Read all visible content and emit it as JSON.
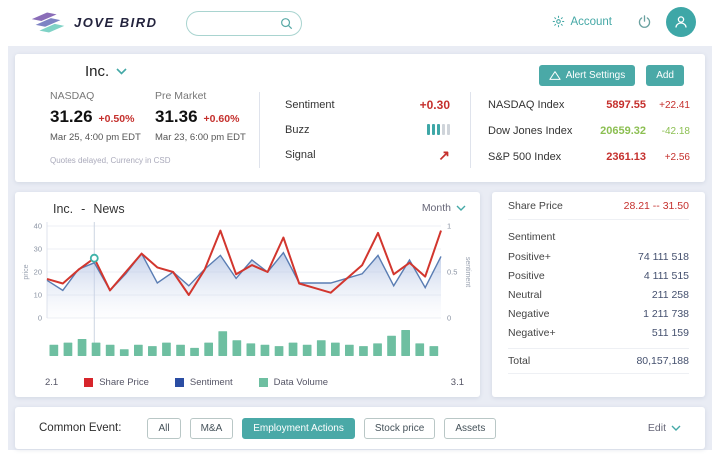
{
  "header": {
    "logo_text": "JOVE BIRD",
    "search_placeholder": "",
    "account_label": "Account"
  },
  "overview": {
    "company": "Inc.",
    "quote_exchange": {
      "label": "NASDAQ",
      "price": "31.26",
      "change": "+0.50%",
      "time": "Mar 25, 4:00 pm  EDT"
    },
    "quote_premarket": {
      "label": "Pre Market",
      "price": "31.36",
      "change": "+0.60%",
      "time": "Mar 23, 6:00 pm  EDT"
    },
    "disclaimer": "Quotes delayed, Currency in CSD",
    "metrics": {
      "sentiment_label": "Sentiment",
      "sentiment_value": "+0.30",
      "buzz_label": "Buzz",
      "buzz": {
        "filled": 3,
        "total": 5
      },
      "signal_label": "Signal",
      "signal_arrow": "↗"
    },
    "buttons": {
      "alert": "Alert Settings",
      "add": "Add"
    },
    "indices": [
      {
        "name": "NASDAQ Index",
        "value": "5897.55",
        "change": "+22.41",
        "direction": "up"
      },
      {
        "name": "Dow Jones Index",
        "value": "20659.32",
        "change": "-42.18",
        "direction": "down"
      },
      {
        "name": "S&P 500 Index",
        "value": "2361.13",
        "change": "+2.56",
        "direction": "up"
      }
    ]
  },
  "news": {
    "company": "Inc.",
    "separator": "-",
    "title": "News",
    "period": "Month"
  },
  "chart_data": {
    "type": "line+bar",
    "title": "Inc. - News",
    "x_start_label": "2.1",
    "x_end_label": "3.1",
    "left_axis": {
      "label": "price",
      "range": [
        0,
        40
      ],
      "ticks": [
        0,
        10,
        20,
        30,
        40
      ]
    },
    "right_axis": {
      "label": "sentiment",
      "range": [
        0,
        1
      ],
      "ticks": [
        0,
        0.5,
        1
      ]
    },
    "hover_index": 3,
    "legend": [
      "Share Price",
      "Sentiment",
      "Data Volume"
    ],
    "legend_colors": [
      "#d7252b",
      "#2b4da3",
      "#6ebfa1"
    ],
    "series": [
      {
        "name": "Share Price",
        "axis": "left",
        "color": "#d2362e",
        "values": [
          17,
          15,
          21,
          26,
          12,
          20,
          28,
          22,
          20,
          10,
          21,
          38,
          19,
          23,
          20,
          35,
          15,
          13,
          11,
          17,
          23,
          37,
          19,
          24,
          18,
          38
        ]
      },
      {
        "name": "Sentiment",
        "axis": "right",
        "color": "#5a7db3",
        "values": [
          0.41,
          0.3,
          0.53,
          0.6,
          0.3,
          0.48,
          0.7,
          0.38,
          0.5,
          0.35,
          0.53,
          0.68,
          0.43,
          0.63,
          0.5,
          0.71,
          0.38,
          0.38,
          0.38,
          0.43,
          0.48,
          0.68,
          0.35,
          0.63,
          0.33,
          0.67
        ]
      },
      {
        "name": "Data Volume",
        "axis": "volume",
        "color": "#6ebfa1",
        "values": [
          25,
          30,
          38,
          30,
          25,
          15,
          25,
          22,
          30,
          25,
          18,
          30,
          55,
          35,
          28,
          25,
          22,
          30,
          25,
          35,
          30,
          25,
          22,
          28,
          45,
          58,
          28,
          22
        ]
      }
    ]
  },
  "stats": {
    "share_price_label": "Share Price",
    "share_price_range": "28.21 -- 31.50",
    "sentiment_label": "Sentiment",
    "rows": [
      {
        "label": "Positive+",
        "value": "74 111 518"
      },
      {
        "label": "Positive",
        "value": "4 111 515"
      },
      {
        "label": "Neutral",
        "value": "211 258"
      },
      {
        "label": "Negative",
        "value": "1 211 738"
      },
      {
        "label": "Negative+",
        "value": "511 159"
      }
    ],
    "total_label": "Total",
    "total_value": "80,157,188"
  },
  "events": {
    "label": "Common Event:",
    "filters": [
      {
        "label": "All",
        "active": false
      },
      {
        "label": "M&A",
        "active": false
      },
      {
        "label": "Employment Actions",
        "active": true
      },
      {
        "label": "Stock price",
        "active": false
      },
      {
        "label": "Assets",
        "active": false
      }
    ],
    "edit_label": "Edit"
  },
  "colors": {
    "accent_teal": "#44a9a7",
    "up_red": "#c5302d",
    "down_green": "#8cbf52",
    "chart_red": "#d2362e",
    "chart_blue": "#5a7db3",
    "chart_bar": "#6ebfa1",
    "background": "#e9ecf4"
  }
}
